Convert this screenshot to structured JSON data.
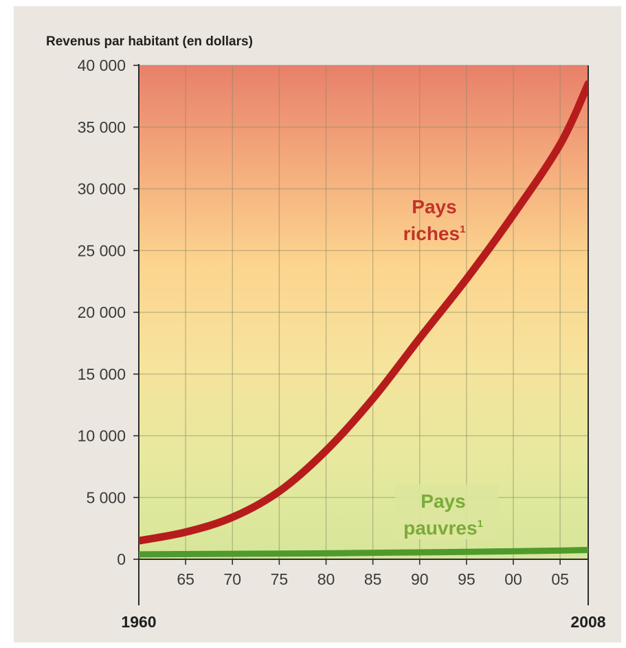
{
  "chart_data": {
    "type": "line",
    "ylabel": "Revenus par habitant (en dollars)",
    "ylim": [
      0,
      40000
    ],
    "xlim": [
      1960,
      2008
    ],
    "yticks": [
      0,
      5000,
      10000,
      15000,
      20000,
      25000,
      30000,
      35000,
      40000
    ],
    "ytick_labels": [
      "0",
      "5 000",
      "10 000",
      "15 000",
      "20 000",
      "25 000",
      "30 000",
      "35 000",
      "40 000"
    ],
    "xticks": [
      1965,
      1970,
      1975,
      1980,
      1985,
      1990,
      1995,
      2000,
      2005
    ],
    "xtick_labels": [
      "65",
      "70",
      "75",
      "80",
      "85",
      "90",
      "95",
      "00",
      "05"
    ],
    "x_start_label": "1960",
    "x_end_label": "2008",
    "grid": true,
    "background_gradient": [
      "#e8806a",
      "#f4ab7c",
      "#fcd48e",
      "#f6e39c",
      "#e6e99e",
      "#d6e69a"
    ],
    "series": [
      {
        "name": "Pays riches",
        "label_line1": "Pays",
        "label_line2": "riches",
        "footnote_mark": "1",
        "color": "#b71c1c",
        "label_color": "#c0342a",
        "x": [
          1960,
          1965,
          1970,
          1975,
          1980,
          1985,
          1990,
          1995,
          2000,
          2005,
          2008
        ],
        "y": [
          1500,
          2200,
          3400,
          5500,
          8800,
          13000,
          17900,
          22700,
          27900,
          33600,
          38500
        ]
      },
      {
        "name": "Pays pauvres",
        "label_line1": "Pays",
        "label_line2": "pauvres",
        "footnote_mark": "1",
        "color": "#4f9a2c",
        "label_color": "#7aab3a",
        "x": [
          1960,
          1965,
          1970,
          1975,
          1980,
          1985,
          1990,
          1995,
          2000,
          2005,
          2008
        ],
        "y": [
          400,
          420,
          440,
          460,
          480,
          520,
          560,
          600,
          650,
          700,
          750
        ]
      }
    ]
  }
}
